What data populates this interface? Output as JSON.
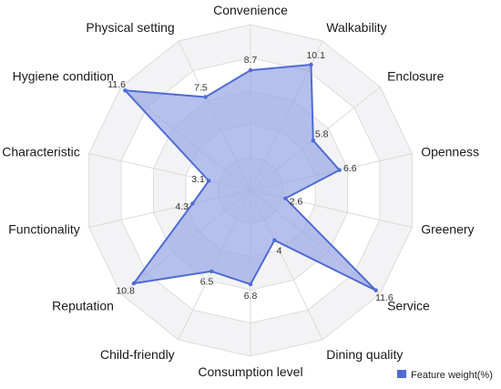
{
  "chart_data": {
    "type": "radar",
    "categories": [
      "Convenience",
      "Walkability",
      "Enclosure",
      "Openness",
      "Greenery",
      "Service",
      "Dining quality",
      "Consumption level",
      "Child-friendly",
      "Reputation",
      "Functionality",
      "Characteristic",
      "Hygiene condition",
      "Physical setting"
    ],
    "series": [
      {
        "name": "Feature weight(%)",
        "values": [
          8.7,
          10.1,
          5.8,
          6.6,
          2.6,
          11.6,
          4,
          6.8,
          6.5,
          10.8,
          4.3,
          3.1,
          11.6,
          7.5
        ]
      }
    ],
    "value_labels": [
      "8.7",
      "10.1",
      "5.8",
      "6.6",
      "2.6",
      "11.6",
      "4",
      "6.8",
      "6.5",
      "10.8",
      "4.3",
      "3.1",
      "11.6",
      "7.5"
    ],
    "rmax": 12,
    "rings": 5,
    "legend": {
      "label": "Feature weight(%)",
      "position": "bottom-right"
    },
    "colors": {
      "line": "#4f6bd4",
      "fill": "#9aa8e6",
      "ring_band": "#f3f3f5",
      "grid": "#dcdcdc"
    }
  }
}
